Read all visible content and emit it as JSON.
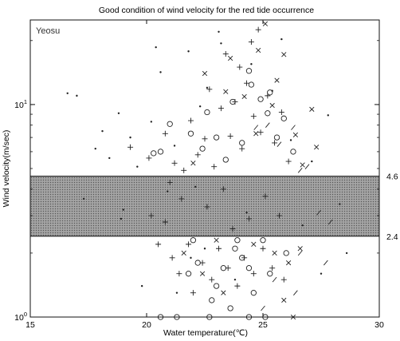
{
  "chart_data": {
    "type": "scatter",
    "title": "Good condition of wind velocity for the red tide occurrence",
    "xlabel": "Water temperature(℃)",
    "ylabel": "Wind velocity(m/sec)",
    "panel_label": "Yeosu",
    "x_scale": "linear",
    "y_scale": "log",
    "xlim": [
      15,
      30
    ],
    "ylim": [
      1,
      25
    ],
    "x_ticks": [
      "15",
      "20",
      "25",
      "30"
    ],
    "y_ticks": [
      {
        "value": 1,
        "base": "10",
        "exp": "0"
      },
      {
        "value": 10,
        "base": "10",
        "exp": "1"
      }
    ],
    "shaded_band": {
      "from": 2.4,
      "to": 4.6,
      "color": "#9a9a9a"
    },
    "band_labels": [
      "4.6",
      "2.4"
    ],
    "grid": false,
    "legend": "none",
    "marker_color": "#222222",
    "series": [
      {
        "marker": "dot",
        "points": [
          [
            16.6,
            11.3
          ],
          [
            17.0,
            11.0
          ],
          [
            17.8,
            6.2
          ],
          [
            18.1,
            7.5
          ],
          [
            18.4,
            5.6
          ],
          [
            18.8,
            9.1
          ],
          [
            19.0,
            3.2
          ],
          [
            19.3,
            7.0
          ],
          [
            19.6,
            5.1
          ],
          [
            20.2,
            8.3
          ],
          [
            20.6,
            14.2
          ],
          [
            21.2,
            6.4
          ],
          [
            21.8,
            17.8
          ],
          [
            22.3,
            9.8
          ],
          [
            22.6,
            12.0
          ],
          [
            23.2,
            19.4
          ],
          [
            21.9,
            1.9
          ],
          [
            23.8,
            1.5
          ],
          [
            22.5,
            2.1
          ],
          [
            21.3,
            1.3
          ],
          [
            24.5,
            15.5
          ],
          [
            25.4,
            11.6
          ],
          [
            26.2,
            6.8
          ],
          [
            27.1,
            5.4
          ],
          [
            27.8,
            8.9
          ],
          [
            28.3,
            3.4
          ],
          [
            28.6,
            2.0
          ],
          [
            17.3,
            3.6
          ],
          [
            18.9,
            2.9
          ],
          [
            20.9,
            3.9
          ],
          [
            22.1,
            4.1
          ],
          [
            24.3,
            3.1
          ],
          [
            26.7,
            2.7
          ],
          [
            27.5,
            1.6
          ],
          [
            19.8,
            1.4
          ],
          [
            20.4,
            18.6
          ],
          [
            25.8,
            20.3
          ],
          [
            23.1,
            22.0
          ]
        ]
      },
      {
        "marker": "plus",
        "points": [
          [
            19.3,
            6.3
          ],
          [
            20.1,
            5.6
          ],
          [
            20.8,
            7.3
          ],
          [
            21.2,
            5.3
          ],
          [
            21.6,
            4.9
          ],
          [
            21.9,
            8.4
          ],
          [
            22.2,
            5.8
          ],
          [
            22.5,
            6.9
          ],
          [
            22.9,
            5.1
          ],
          [
            23.2,
            9.6
          ],
          [
            23.6,
            7.1
          ],
          [
            23.8,
            10.3
          ],
          [
            24.1,
            6.2
          ],
          [
            24.3,
            12.6
          ],
          [
            24.6,
            8.8
          ],
          [
            24.9,
            7.4
          ],
          [
            25.2,
            11.0
          ],
          [
            25.5,
            6.6
          ],
          [
            25.8,
            9.2
          ],
          [
            26.1,
            5.4
          ],
          [
            22.7,
            11.8
          ],
          [
            24.0,
            15.0
          ],
          [
            23.4,
            17.3
          ],
          [
            24.5,
            19.7
          ],
          [
            24.8,
            22.5
          ],
          [
            20.5,
            2.2
          ],
          [
            21.1,
            1.9
          ],
          [
            21.4,
            1.6
          ],
          [
            21.8,
            2.2
          ],
          [
            22.0,
            1.3
          ],
          [
            22.4,
            1.8
          ],
          [
            22.8,
            1.5
          ],
          [
            23.1,
            2.1
          ],
          [
            23.5,
            1.7
          ],
          [
            23.9,
            1.4
          ],
          [
            24.2,
            1.9
          ],
          [
            24.6,
            1.6
          ],
          [
            25.0,
            2.1
          ],
          [
            25.4,
            1.7
          ],
          [
            25.9,
            1.5
          ],
          [
            20.2,
            3.0
          ],
          [
            20.8,
            2.8
          ],
          [
            21.5,
            3.6
          ],
          [
            22.6,
            3.3
          ],
          [
            23.3,
            4.0
          ],
          [
            24.4,
            2.9
          ],
          [
            25.1,
            3.7
          ],
          [
            25.7,
            3.0
          ],
          [
            21.0,
            4.3
          ],
          [
            23.7,
            2.6
          ]
        ]
      },
      {
        "marker": "circle",
        "points": [
          [
            21.0,
            8.1
          ],
          [
            21.9,
            7.3
          ],
          [
            22.6,
            9.2
          ],
          [
            23.0,
            7.0
          ],
          [
            23.7,
            10.3
          ],
          [
            24.1,
            6.6
          ],
          [
            24.5,
            12.4
          ],
          [
            24.9,
            10.6
          ],
          [
            25.2,
            9.1
          ],
          [
            25.6,
            7.0
          ],
          [
            25.9,
            8.6
          ],
          [
            26.3,
            6.0
          ],
          [
            24.4,
            14.4
          ],
          [
            23.4,
            5.5
          ],
          [
            22.4,
            6.2
          ],
          [
            20.3,
            5.9
          ],
          [
            20.6,
            6.0
          ],
          [
            25.3,
            11.4
          ],
          [
            22.2,
            1.8
          ],
          [
            23.3,
            1.7
          ],
          [
            24.1,
            1.9
          ],
          [
            24.6,
            1.3
          ],
          [
            25.3,
            1.6
          ],
          [
            23.0,
            1.4
          ],
          [
            23.8,
            2.1
          ],
          [
            24.4,
            1.7
          ],
          [
            21.8,
            1.6
          ],
          [
            22.8,
            1.2
          ],
          [
            20.6,
            1.0
          ],
          [
            21.3,
            1.0
          ],
          [
            22.7,
            1.0
          ],
          [
            23.6,
            1.1
          ],
          [
            24.4,
            1.0
          ],
          [
            25.1,
            1.0
          ],
          [
            26.0,
            2.0
          ],
          [
            22.0,
            2.3
          ],
          [
            23.9,
            2.3
          ],
          [
            25.0,
            2.3
          ]
        ]
      },
      {
        "marker": "cross",
        "points": [
          [
            22.5,
            14.0
          ],
          [
            23.6,
            16.5
          ],
          [
            24.8,
            18.0
          ],
          [
            25.1,
            24.0
          ],
          [
            25.9,
            17.2
          ],
          [
            26.4,
            7.2
          ],
          [
            26.7,
            5.2
          ],
          [
            27.1,
            9.5
          ],
          [
            27.3,
            6.3
          ],
          [
            24.7,
            7.3
          ],
          [
            25.4,
            9.9
          ],
          [
            24.2,
            10.9
          ],
          [
            25.6,
            13.0
          ],
          [
            22.0,
            5.3
          ],
          [
            23.4,
            11.5
          ],
          [
            23.0,
            2.3
          ],
          [
            24.6,
            2.2
          ],
          [
            25.5,
            2.0
          ],
          [
            26.1,
            1.8
          ],
          [
            26.6,
            2.1
          ],
          [
            23.3,
            1.3
          ],
          [
            25.9,
            1.2
          ],
          [
            26.3,
            1.0
          ],
          [
            21.6,
            2.0
          ],
          [
            22.4,
            1.6
          ]
        ]
      },
      {
        "marker": "slash",
        "points": [
          [
            24.7,
            7.8
          ],
          [
            25.2,
            8.0
          ],
          [
            25.7,
            6.5
          ],
          [
            26.3,
            7.8
          ],
          [
            26.9,
            5.1
          ],
          [
            26.6,
            4.9
          ],
          [
            27.4,
            3.1
          ],
          [
            27.9,
            2.8
          ],
          [
            25.5,
            1.5
          ],
          [
            26.4,
            1.3
          ],
          [
            25.0,
            1.1
          ],
          [
            26.6,
            2.0
          ],
          [
            27.7,
            1.8
          ]
        ]
      }
    ]
  }
}
